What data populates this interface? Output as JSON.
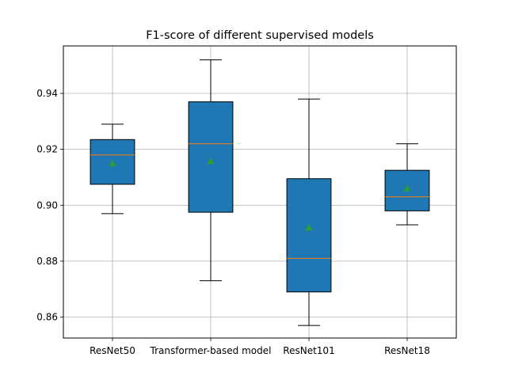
{
  "chart_data": {
    "type": "box",
    "title": "F1-score of different supervised models",
    "xlabel": "",
    "ylabel": "",
    "ylim": [
      0.8525,
      0.957
    ],
    "yticks": [
      0.86,
      0.88,
      0.9,
      0.92,
      0.94
    ],
    "ytick_labels": [
      "0.86",
      "0.88",
      "0.90",
      "0.92",
      "0.94"
    ],
    "grid": true,
    "legend": "none",
    "colors": {
      "box_fill": "#1f77b4",
      "median": "#ff7f0e",
      "mean_marker": "#2ca02c",
      "grid": "#b0b0b0"
    },
    "categories": [
      "ResNet50",
      "Transformer-based model",
      "ResNet101",
      "ResNet18"
    ],
    "boxes": [
      {
        "label": "ResNet50",
        "whisker_low": 0.897,
        "q1": 0.9075,
        "median": 0.918,
        "q3": 0.9235,
        "whisker_high": 0.929,
        "mean": 0.915
      },
      {
        "label": "Transformer-based model",
        "whisker_low": 0.873,
        "q1": 0.8975,
        "median": 0.922,
        "q3": 0.937,
        "whisker_high": 0.952,
        "mean": 0.9158
      },
      {
        "label": "ResNet101",
        "whisker_low": 0.857,
        "q1": 0.869,
        "median": 0.881,
        "q3": 0.9095,
        "whisker_high": 0.938,
        "mean": 0.892
      },
      {
        "label": "ResNet18",
        "whisker_low": 0.893,
        "q1": 0.898,
        "median": 0.903,
        "q3": 0.9125,
        "whisker_high": 0.922,
        "mean": 0.906
      }
    ]
  }
}
